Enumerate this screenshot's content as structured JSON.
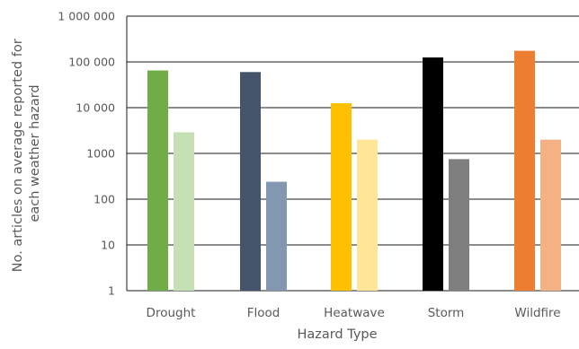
{
  "chart_data": {
    "type": "bar",
    "scale": "log",
    "xlabel": "Hazard Type",
    "ylabel_lines": [
      "No. articles on average reported for",
      "each weather hazard"
    ],
    "ylim": [
      1,
      1000000
    ],
    "y_ticks": [
      {
        "value": 1,
        "label": "1"
      },
      {
        "value": 10,
        "label": "10"
      },
      {
        "value": 100,
        "label": "100"
      },
      {
        "value": 1000,
        "label": "1000"
      },
      {
        "value": 10000,
        "label": "10 000"
      },
      {
        "value": 100000,
        "label": "100 000"
      },
      {
        "value": 1000000,
        "label": "1 000 000"
      }
    ],
    "grid": true,
    "categories": [
      "Drought",
      "Flood",
      "Heatwave",
      "Storm",
      "Wildfire"
    ],
    "series": [
      {
        "values": [
          65000,
          60000,
          12500,
          125000,
          175000
        ],
        "colors": [
          "#70ad47",
          "#44546a",
          "#ffc000",
          "#000000",
          "#ed7d31"
        ]
      },
      {
        "values": [
          2900,
          240,
          2000,
          750,
          2000
        ],
        "colors": [
          "#c5e0b4",
          "#8497b0",
          "#ffe699",
          "#7f7f7f",
          "#f4b183"
        ]
      }
    ]
  }
}
